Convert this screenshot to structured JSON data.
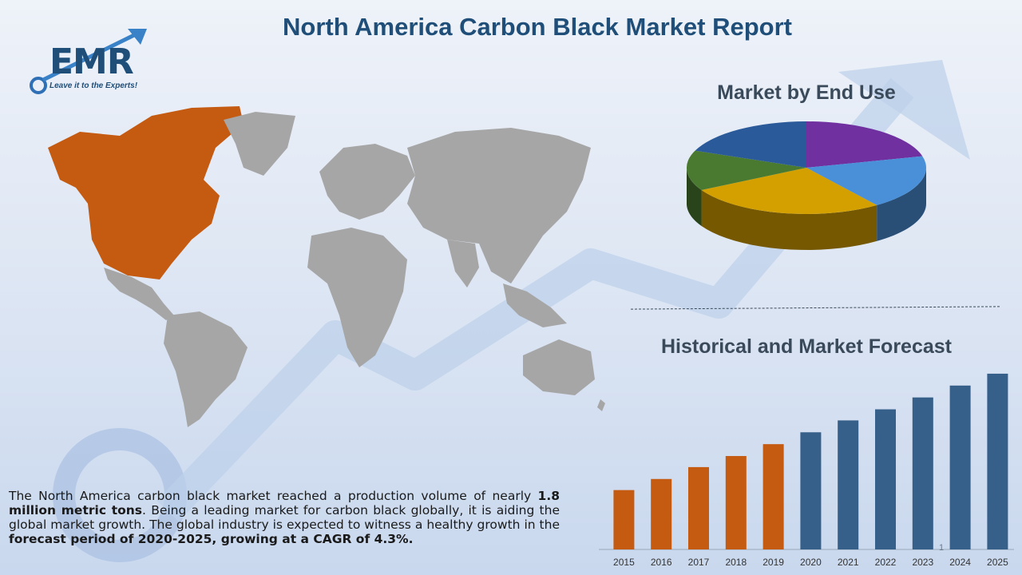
{
  "header": {
    "title": "North America Carbon Black Market Report"
  },
  "logo": {
    "text": "EMR",
    "tagline": "Leave it to the Experts!"
  },
  "pie_section": {
    "title": "Market by End Use"
  },
  "bar_section": {
    "title": "Historical and Market Forecast"
  },
  "description": {
    "part1": "The North America carbon black market reached a production volume of nearly ",
    "bold1": "1.8 million metric tons",
    "part2": ". Being a leading market for carbon black globally, it is aiding the global market growth. The global industry is expected to witness a healthy growth in the ",
    "bold2": "forecast period of 2020-2025, growing at a CAGR of 4.3%."
  },
  "page_number": "1",
  "colors": {
    "title": "#1f4e79",
    "historical_bar": "#c55a11",
    "forecast_bar": "#365f8a",
    "map_highlight": "#c55a11",
    "map_base": "#a6a6a6"
  },
  "chart_data": [
    {
      "type": "pie",
      "title": "Market by End Use",
      "values": [
        21,
        19,
        27,
        14,
        19
      ],
      "colors": [
        "#7030a0",
        "#4a90d9",
        "#d4a000",
        "#4a7a30",
        "#2a5a9a"
      ]
    },
    {
      "type": "bar",
      "title": "Historical and Market Forecast",
      "categories": [
        "2015",
        "2016",
        "2017",
        "2018",
        "2019",
        "2020",
        "2021",
        "2022",
        "2023",
        "2024",
        "2025"
      ],
      "values": [
        75,
        89,
        104,
        118,
        133,
        148,
        163,
        177,
        192,
        207,
        222
      ],
      "historical_count": 5,
      "ylim": [
        0,
        230
      ]
    }
  ]
}
